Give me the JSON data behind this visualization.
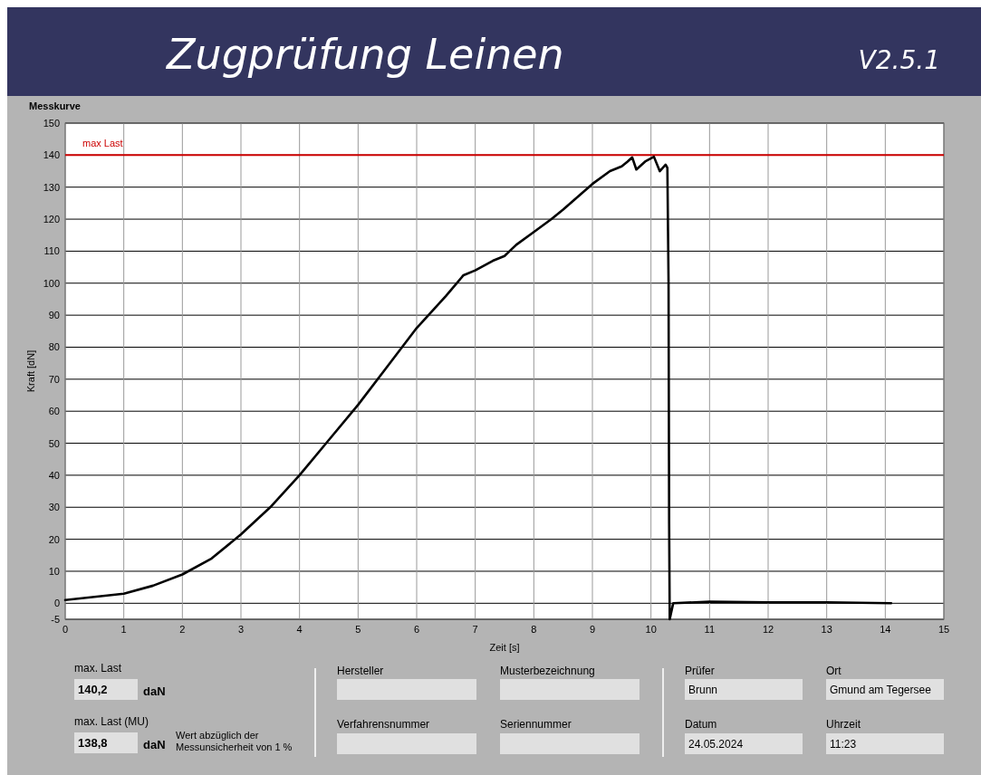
{
  "chart_data": [
    {
      "type": "line",
      "title": "Zugprüfung Leinen",
      "subtitle": "Messkurve",
      "annotations": [
        "V2.5.1"
      ],
      "xlabel": "Zeit [s]",
      "ylabel": "Kraft [dN]",
      "x": [
        0,
        0.5,
        1,
        1.5,
        2,
        2.5,
        3,
        3.5,
        4,
        4.5,
        5,
        5.5,
        6,
        6.5,
        6.8,
        7,
        7.3,
        7.5,
        7.7,
        8,
        8.3,
        8.5,
        9,
        9.3,
        9.5,
        9.6,
        9.68,
        9.75,
        9.9,
        10.05,
        10.15,
        10.25,
        10.28,
        10.3,
        10.31,
        10.32,
        10.38,
        11,
        12,
        13,
        14.1
      ],
      "series": [
        {
          "color": "#000000",
          "values": [
            1,
            2,
            3,
            5.5,
            9,
            14,
            21.5,
            30,
            40,
            51,
            62,
            74,
            86,
            96,
            102.5,
            104,
            107,
            108.5,
            112,
            116,
            120,
            123,
            131,
            135,
            136.5,
            138,
            139.3,
            135.5,
            138,
            139.5,
            135,
            137,
            136,
            100,
            25,
            -5,
            0,
            0.5,
            0.3,
            0.3,
            0
          ]
        }
      ],
      "xlim": [
        0,
        15
      ],
      "xticks": [
        0,
        1,
        2,
        3,
        4,
        5,
        6,
        7,
        8,
        9,
        10,
        11,
        12,
        13,
        14,
        15
      ],
      "ylim": [
        -5,
        150
      ],
      "yticks": [
        -5,
        0,
        10,
        20,
        30,
        40,
        50,
        60,
        70,
        80,
        90,
        100,
        110,
        120,
        130,
        140,
        150
      ],
      "grid": true,
      "marker": "none",
      "line_style": "solid",
      "ref_lines": [
        {
          "axis": "y",
          "value": 140,
          "label": "max Last",
          "color": "#cc0000"
        }
      ]
    },
    {
      "type": "other",
      "annotations": [
        "max. Last",
        "140,2",
        "daN",
        "max. Last (MU)",
        "138,8",
        "daN",
        "Wert abzüglich der Messunsicherheit von 1 %",
        "Hersteller",
        "Musterbezeichnung",
        "Verfahrensnummer",
        "Seriennummer",
        "Prüfer",
        "Brunn",
        "Datum",
        "24.05.2024",
        "Ort",
        "Gmund am Tegersee",
        "Uhrzeit",
        "11:23"
      ]
    }
  ]
}
